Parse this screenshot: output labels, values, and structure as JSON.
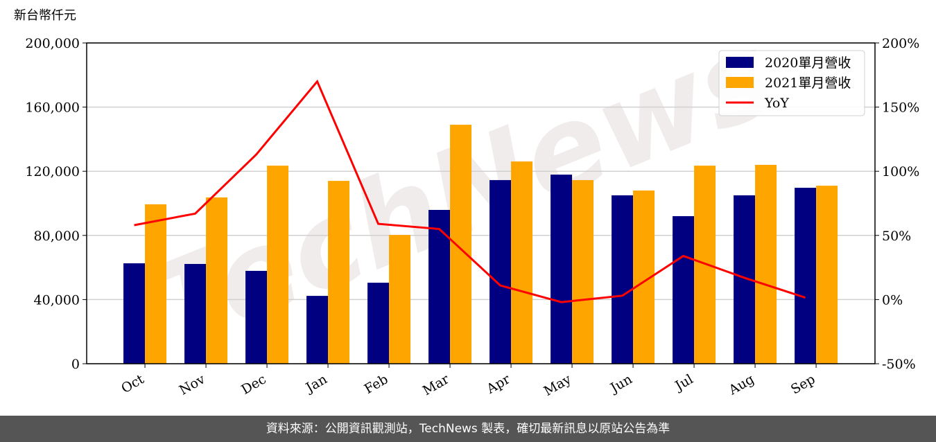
{
  "chart_data": {
    "type": "bar-line",
    "y_axis_label": "新台幣仟元",
    "watermark": "TechNews",
    "categories": [
      "Oct",
      "Nov",
      "Dec",
      "Jan",
      "Feb",
      "Mar",
      "Apr",
      "May",
      "Jun",
      "Jul",
      "Aug",
      "Sep"
    ],
    "series": [
      {
        "name": "2020單月營收",
        "type": "bar",
        "color": "#000080",
        "values": [
          62600,
          62200,
          57900,
          42300,
          50500,
          95900,
          114500,
          117900,
          105000,
          92000,
          105000,
          109700
        ]
      },
      {
        "name": "2021單月營收",
        "type": "bar",
        "color": "#ffa500",
        "values": [
          99400,
          103700,
          123500,
          114000,
          80300,
          149000,
          126100,
          114500,
          108000,
          123500,
          124000,
          111000
        ]
      },
      {
        "name": "YoY",
        "type": "line",
        "axis": "y2",
        "color": "#ff0000",
        "values": [
          58,
          67,
          113,
          170,
          59,
          55,
          11,
          -2,
          3,
          34,
          17,
          1.5
        ]
      }
    ],
    "ylim": [
      0,
      200000
    ],
    "yticks": [
      0,
      {
        "value": 40000,
        "label": "40,000"
      },
      {
        "value": 80000,
        "label": "80,000"
      },
      {
        "value": 120000,
        "label": "120,000"
      },
      {
        "value": 160000,
        "label": "160,000"
      },
      {
        "value": 200000,
        "label": "200,000"
      }
    ],
    "y2lim": [
      -50,
      200
    ],
    "y2ticks": [
      {
        "value": -50,
        "label": "-50%"
      },
      {
        "value": 0,
        "label": "0%"
      },
      {
        "value": 50,
        "label": "50%"
      },
      {
        "value": 100,
        "label": "100%"
      },
      {
        "value": 150,
        "label": "150%"
      },
      {
        "value": 200,
        "label": "200%"
      }
    ],
    "grid": true,
    "legend": "upper right",
    "source": "資料來源：公開資訊觀測站，TechNews 製表，確切最新訊息以原站公告為準"
  }
}
